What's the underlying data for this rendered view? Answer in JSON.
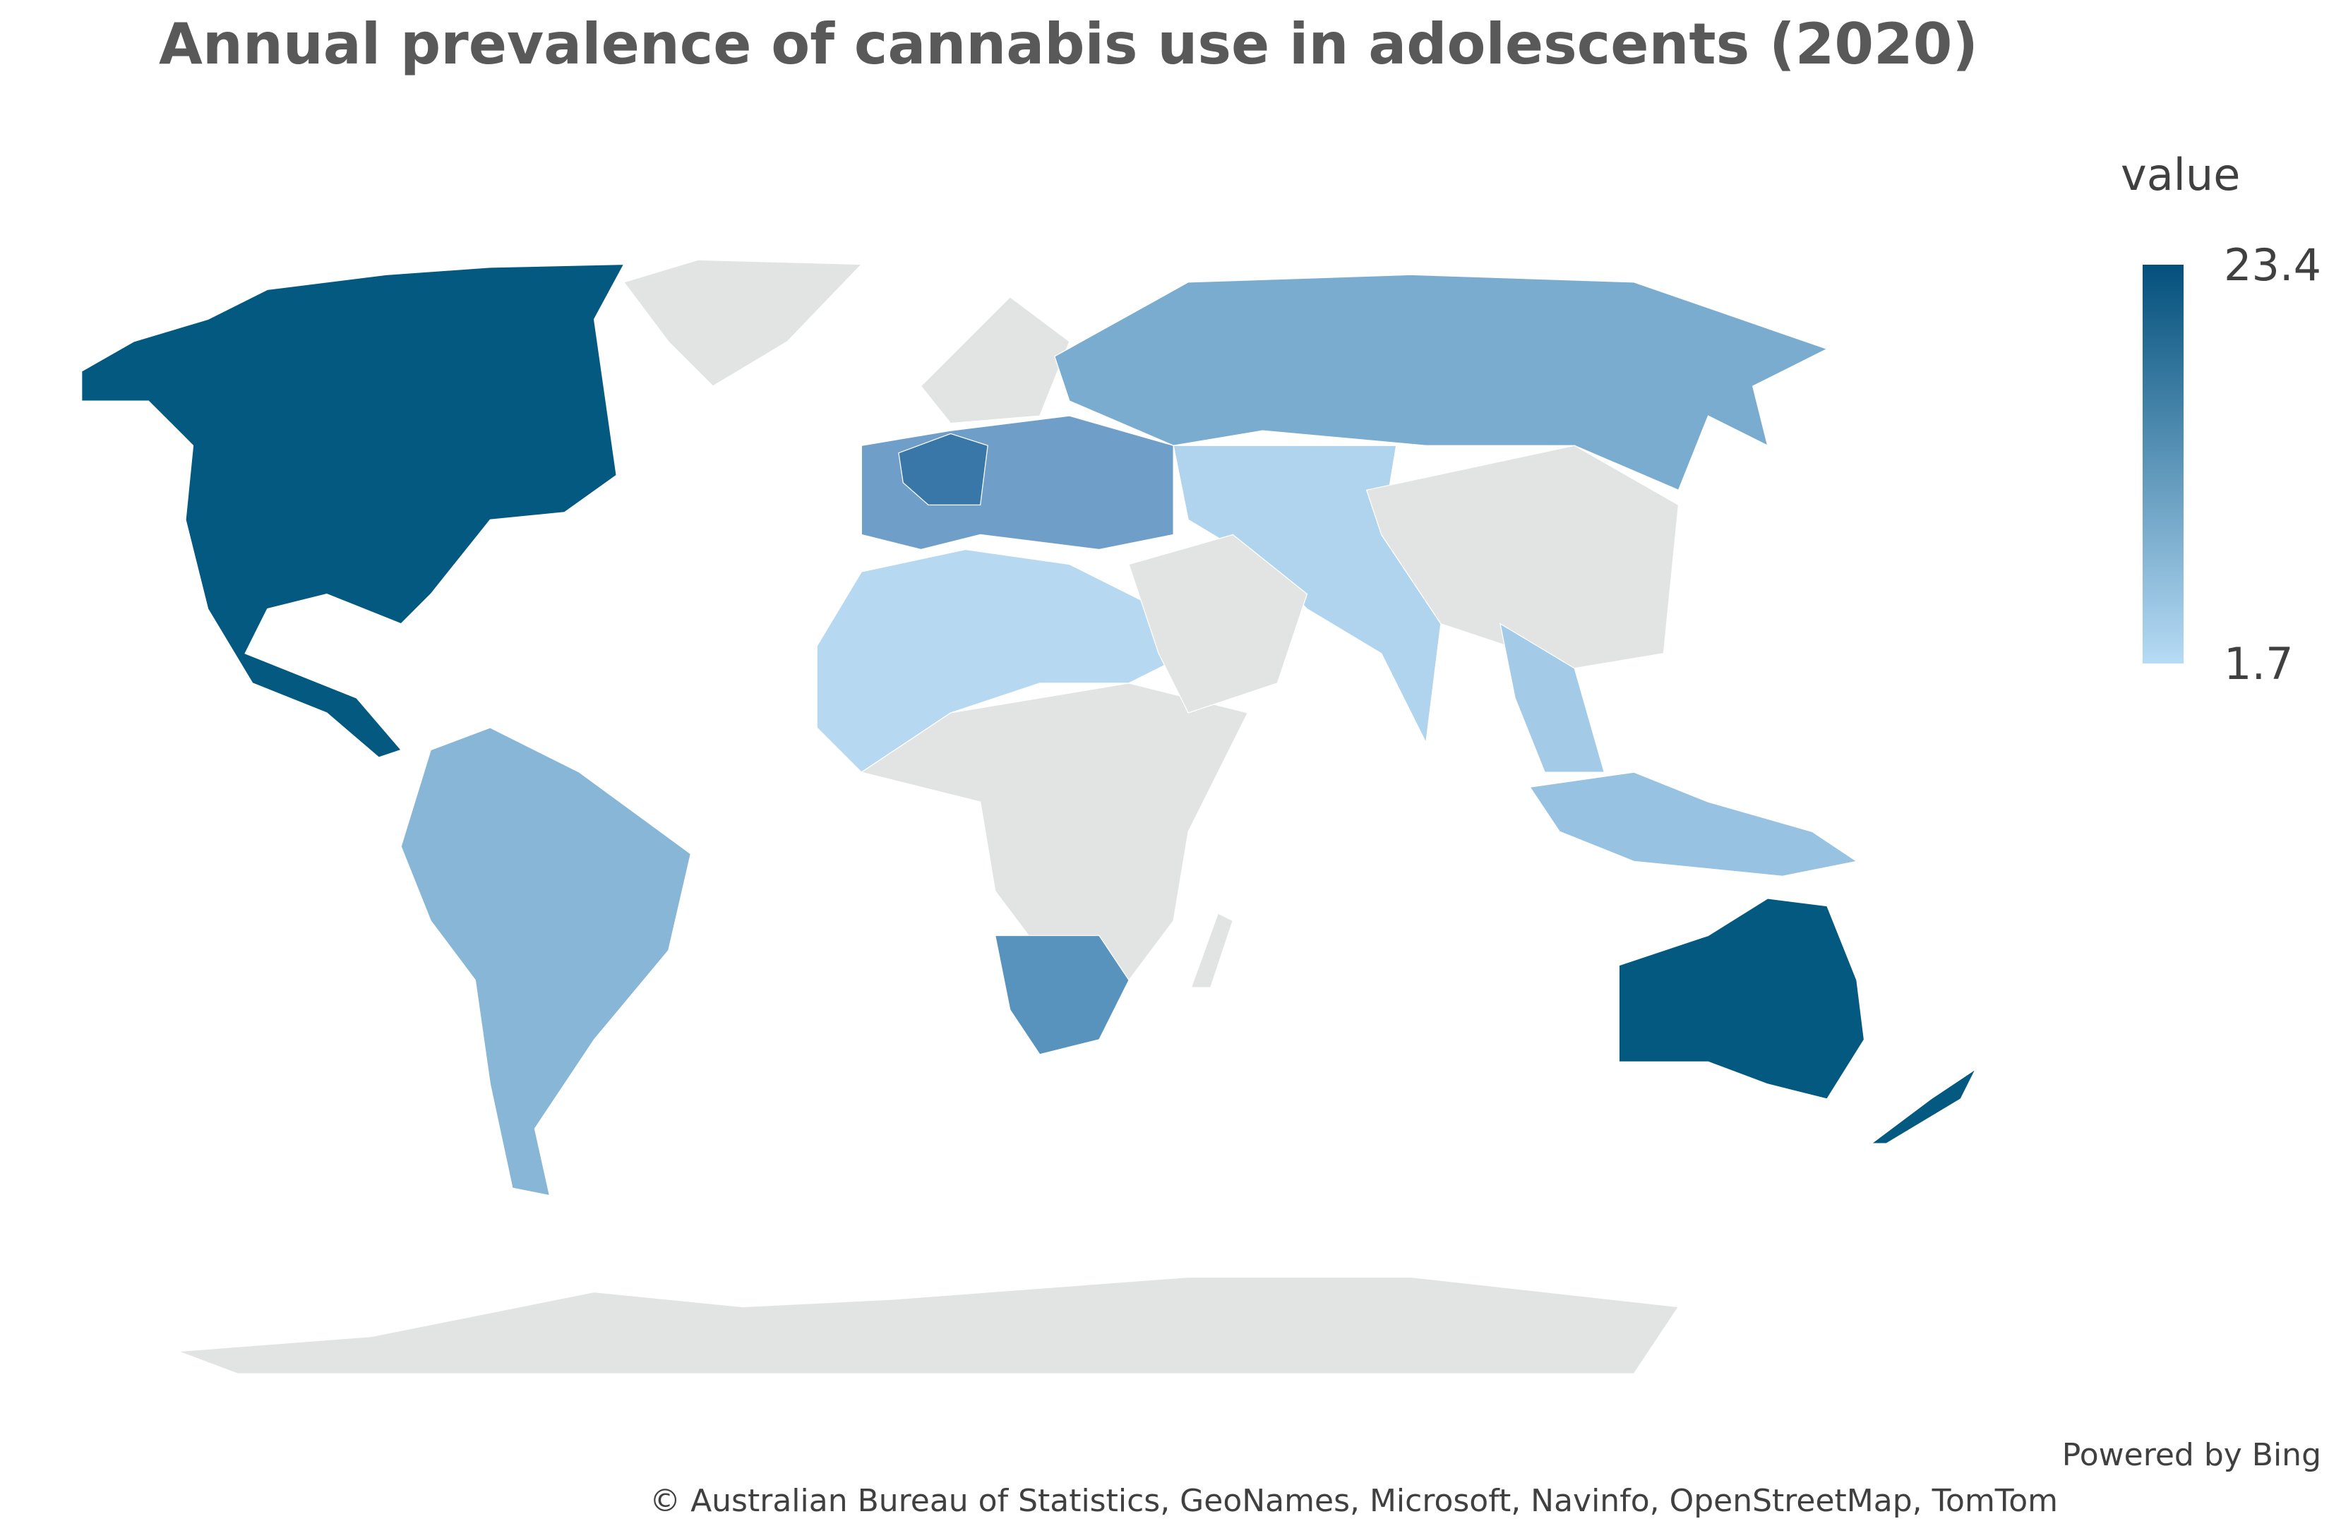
{
  "chart_data": {
    "type": "choropleth",
    "title": "Annual prevalence of cannabis use in adolescents (2020)",
    "legend_title": "value",
    "color_range": [
      1.7,
      23.4
    ],
    "colors": [
      "#b6dbf5",
      "#03507c"
    ],
    "attribution": [
      "Powered by Bing",
      "© Australian Bureau of Statistics, GeoNames, Microsoft, Navinfo, OpenStreetMap, TomTom"
    ]
  }
}
